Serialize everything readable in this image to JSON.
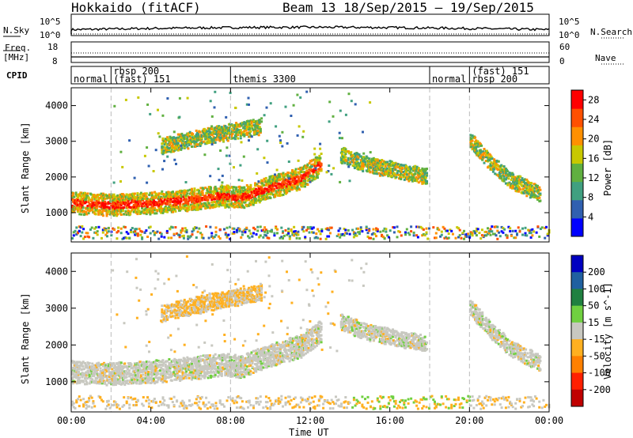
{
  "header": {
    "station": "Hokkaido (fitACF)",
    "beam_date": "Beam 13  18/Sep/2015 – 19/Sep/2015"
  },
  "sky_panel": {
    "left_label": "N.Sky",
    "right_label": "N.Search",
    "left_ticks": [
      "10^5",
      "10^0"
    ],
    "right_ticks": [
      "10^5",
      "10^0"
    ]
  },
  "freq_panel": {
    "left_label_1": "Freq.",
    "left_label_2": "[MHz]",
    "right_label": "Nave",
    "left_ticks": [
      "18",
      "8"
    ],
    "right_ticks": [
      "60",
      "0"
    ]
  },
  "cpid_panel": {
    "label": "CPID",
    "segments": [
      {
        "label": "normal",
        "start": "00:00"
      },
      {
        "label": "rbsp 200\n(fast) 151",
        "start": "02:00"
      },
      {
        "label": "themis 3300",
        "start": "08:00"
      },
      {
        "label": "normal",
        "start": "18:00"
      },
      {
        "label": "(fast) 151\nrbsp 200",
        "start": "20:00"
      }
    ]
  },
  "x_axis": {
    "title": "Time UT",
    "ticks": [
      "00:00",
      "04:00",
      "08:00",
      "12:00",
      "16:00",
      "20:00",
      "00:00"
    ]
  },
  "chart_data": [
    {
      "type": "heatmap",
      "title": "",
      "ylabel": "Slant Range [km]",
      "xlabel": "Time UT",
      "ylim": [
        180,
        4500
      ],
      "y_ticks": [
        1000,
        2000,
        3000,
        4000
      ],
      "colorbar": {
        "label": "Power [dB]",
        "ticks": [
          4,
          8,
          12,
          16,
          20,
          24,
          28
        ],
        "range": [
          0,
          30
        ],
        "colors": [
          "#0000ff",
          "#3060b0",
          "#40a080",
          "#60b040",
          "#c8c800",
          "#ff9000",
          "#ff5000",
          "#ff0000"
        ]
      },
      "echo_bands": [
        {
          "name": "main",
          "t_hours": [
            0,
            2,
            4,
            6,
            7.5,
            8.5,
            10,
            11.5,
            12.5
          ],
          "range_km": [
            1250,
            1200,
            1250,
            1350,
            1450,
            1400,
            1700,
            1950,
            2350
          ],
          "power_db": 24
        },
        {
          "name": "upper",
          "t_hours": [
            4.5,
            6.5,
            8,
            9.5
          ],
          "range_km": [
            2850,
            3100,
            3250,
            3400
          ],
          "power_db": 14
        },
        {
          "name": "late",
          "t_hours": [
            13.5,
            15,
            16.5,
            17.8
          ],
          "range_km": [
            2600,
            2300,
            2150,
            2000
          ],
          "power_db": 10
        },
        {
          "name": "evening",
          "t_hours": [
            20,
            21,
            22,
            23.5
          ],
          "range_km": [
            3000,
            2400,
            1900,
            1500
          ],
          "power_db": 20
        }
      ]
    },
    {
      "type": "heatmap",
      "title": "",
      "ylabel": "Slant Range [km]",
      "xlabel": "Time UT",
      "ylim": [
        180,
        4500
      ],
      "y_ticks": [
        1000,
        2000,
        3000,
        4000
      ],
      "colorbar": {
        "label": "Velocity [m s^-1]",
        "ticks": [
          200,
          100,
          50,
          15,
          -15,
          -50,
          -100,
          -200
        ],
        "range": [
          -250,
          250
        ],
        "colors": [
          "#0000c0",
          "#2060a0",
          "#208040",
          "#70d040",
          "#c8c8c0",
          "#ffb020",
          "#ff8000",
          "#ff2000",
          "#c00000"
        ]
      }
    }
  ]
}
